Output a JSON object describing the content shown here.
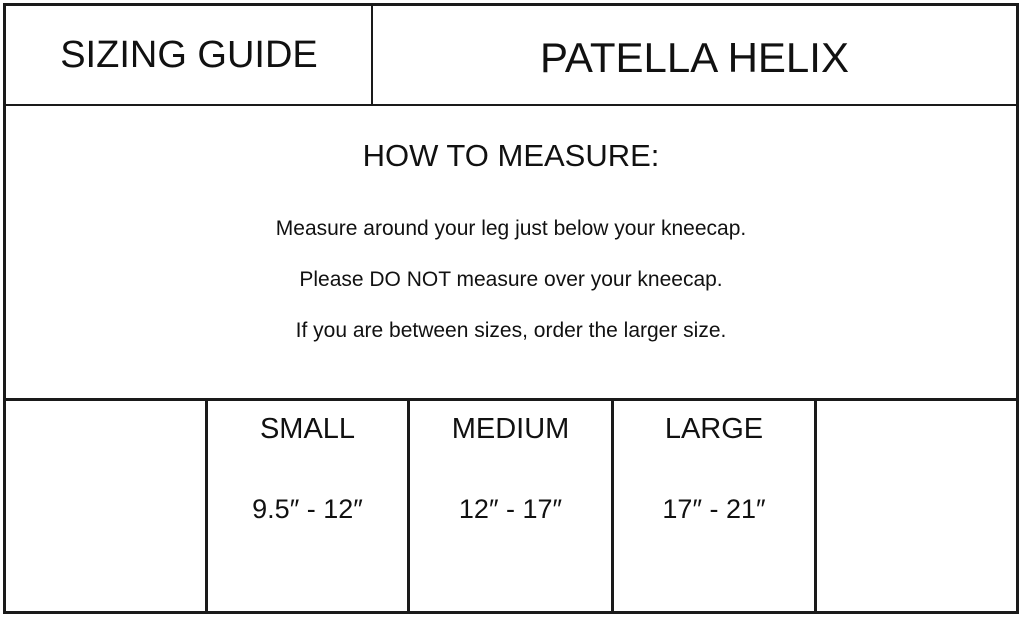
{
  "header": {
    "left_title": "SIZING GUIDE",
    "right_title": "PATELLA HELIX"
  },
  "instructions": {
    "heading": "HOW TO MEASURE:",
    "lines": [
      "Measure around your leg just below your kneecap.",
      "Please DO NOT measure over your kneecap.",
      "If you are between sizes, order the larger size."
    ]
  },
  "sizes": [
    {
      "label": "SMALL",
      "range": "9.5″ - 12″"
    },
    {
      "label": "MEDIUM",
      "range": "12″ - 17″"
    },
    {
      "label": "LARGE",
      "range": "17″ - 21″"
    }
  ]
}
